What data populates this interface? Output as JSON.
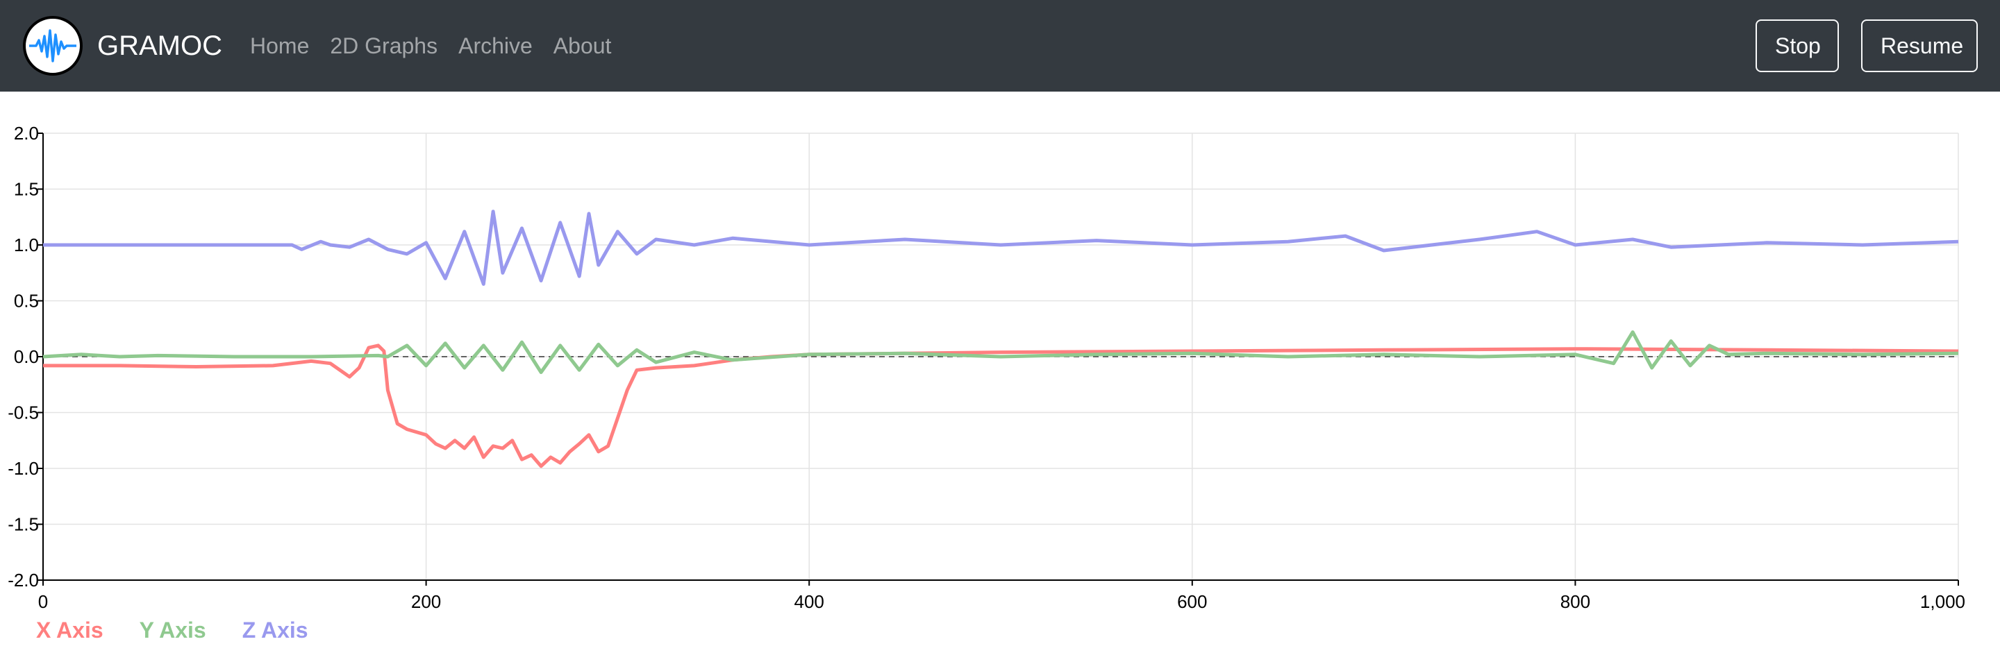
{
  "nav": {
    "brand": "GRAMOC",
    "links": [
      "Home",
      "2D Graphs",
      "Archive",
      "About"
    ],
    "stop_label": "Stop",
    "resume_label": "Resume",
    "logo_icon": "waveform-icon"
  },
  "chart_data": {
    "type": "line",
    "xlim": [
      0,
      1000
    ],
    "ylim": [
      -2.0,
      2.0
    ],
    "x_ticks": [
      0,
      200,
      400,
      600,
      800,
      1000
    ],
    "x_tick_labels": [
      "0",
      "200",
      "400",
      "600",
      "800",
      "1,000"
    ],
    "y_ticks": [
      2.0,
      1.5,
      1.0,
      0.5,
      0.0,
      -0.5,
      -1.0,
      -1.5,
      -2.0
    ],
    "y_tick_labels": [
      "2.0",
      "1.5",
      "1.0",
      "0.5",
      "0.0",
      "-0.5",
      "-1.0",
      "-1.5",
      "-2.0"
    ],
    "grid": true,
    "legend_position": "bottom-left",
    "series": [
      {
        "name": "X Axis",
        "color": "#ff7f7f",
        "points": [
          [
            0,
            -0.08
          ],
          [
            40,
            -0.08
          ],
          [
            80,
            -0.09
          ],
          [
            120,
            -0.08
          ],
          [
            140,
            -0.04
          ],
          [
            150,
            -0.06
          ],
          [
            155,
            -0.12
          ],
          [
            160,
            -0.18
          ],
          [
            165,
            -0.1
          ],
          [
            170,
            0.08
          ],
          [
            175,
            0.1
          ],
          [
            178,
            0.05
          ],
          [
            180,
            -0.3
          ],
          [
            185,
            -0.6
          ],
          [
            190,
            -0.65
          ],
          [
            200,
            -0.7
          ],
          [
            205,
            -0.78
          ],
          [
            210,
            -0.82
          ],
          [
            215,
            -0.75
          ],
          [
            220,
            -0.82
          ],
          [
            225,
            -0.72
          ],
          [
            230,
            -0.9
          ],
          [
            235,
            -0.8
          ],
          [
            240,
            -0.82
          ],
          [
            245,
            -0.75
          ],
          [
            250,
            -0.92
          ],
          [
            255,
            -0.88
          ],
          [
            260,
            -0.98
          ],
          [
            265,
            -0.9
          ],
          [
            270,
            -0.95
          ],
          [
            275,
            -0.85
          ],
          [
            280,
            -0.78
          ],
          [
            285,
            -0.7
          ],
          [
            290,
            -0.85
          ],
          [
            295,
            -0.8
          ],
          [
            300,
            -0.55
          ],
          [
            305,
            -0.3
          ],
          [
            310,
            -0.12
          ],
          [
            320,
            -0.1
          ],
          [
            340,
            -0.08
          ],
          [
            360,
            -0.03
          ],
          [
            380,
            0.0
          ],
          [
            400,
            0.02
          ],
          [
            500,
            0.04
          ],
          [
            600,
            0.05
          ],
          [
            700,
            0.06
          ],
          [
            800,
            0.07
          ],
          [
            900,
            0.06
          ],
          [
            1000,
            0.05
          ]
        ]
      },
      {
        "name": "Y Axis",
        "color": "#8fc98f",
        "points": [
          [
            0,
            0.0
          ],
          [
            20,
            0.02
          ],
          [
            40,
            0.0
          ],
          [
            60,
            0.01
          ],
          [
            100,
            0.0
          ],
          [
            140,
            0.0
          ],
          [
            175,
            0.01
          ],
          [
            180,
            0.0
          ],
          [
            190,
            0.1
          ],
          [
            200,
            -0.08
          ],
          [
            210,
            0.12
          ],
          [
            220,
            -0.1
          ],
          [
            230,
            0.1
          ],
          [
            240,
            -0.12
          ],
          [
            250,
            0.13
          ],
          [
            260,
            -0.14
          ],
          [
            270,
            0.1
          ],
          [
            280,
            -0.12
          ],
          [
            290,
            0.11
          ],
          [
            300,
            -0.08
          ],
          [
            310,
            0.06
          ],
          [
            320,
            -0.05
          ],
          [
            340,
            0.04
          ],
          [
            360,
            -0.03
          ],
          [
            400,
            0.02
          ],
          [
            450,
            0.03
          ],
          [
            500,
            0.0
          ],
          [
            550,
            0.02
          ],
          [
            600,
            0.03
          ],
          [
            650,
            0.0
          ],
          [
            700,
            0.02
          ],
          [
            750,
            0.0
          ],
          [
            800,
            0.02
          ],
          [
            820,
            -0.06
          ],
          [
            830,
            0.22
          ],
          [
            840,
            -0.1
          ],
          [
            850,
            0.14
          ],
          [
            860,
            -0.08
          ],
          [
            870,
            0.1
          ],
          [
            880,
            0.02
          ],
          [
            900,
            0.03
          ],
          [
            950,
            0.02
          ],
          [
            1000,
            0.03
          ]
        ]
      },
      {
        "name": "Z Axis",
        "color": "#9999ee",
        "points": [
          [
            0,
            1.0
          ],
          [
            50,
            1.0
          ],
          [
            100,
            1.0
          ],
          [
            130,
            1.0
          ],
          [
            135,
            0.96
          ],
          [
            145,
            1.03
          ],
          [
            150,
            1.0
          ],
          [
            160,
            0.98
          ],
          [
            170,
            1.05
          ],
          [
            180,
            0.96
          ],
          [
            190,
            0.92
          ],
          [
            200,
            1.02
          ],
          [
            210,
            0.7
          ],
          [
            220,
            1.12
          ],
          [
            230,
            0.65
          ],
          [
            235,
            1.3
          ],
          [
            240,
            0.75
          ],
          [
            250,
            1.15
          ],
          [
            260,
            0.68
          ],
          [
            270,
            1.2
          ],
          [
            280,
            0.72
          ],
          [
            285,
            1.28
          ],
          [
            290,
            0.82
          ],
          [
            300,
            1.12
          ],
          [
            310,
            0.92
          ],
          [
            320,
            1.05
          ],
          [
            340,
            1.0
          ],
          [
            360,
            1.06
          ],
          [
            400,
            1.0
          ],
          [
            450,
            1.05
          ],
          [
            500,
            1.0
          ],
          [
            550,
            1.04
          ],
          [
            600,
            1.0
          ],
          [
            650,
            1.03
          ],
          [
            680,
            1.08
          ],
          [
            700,
            0.95
          ],
          [
            750,
            1.05
          ],
          [
            780,
            1.12
          ],
          [
            800,
            1.0
          ],
          [
            830,
            1.05
          ],
          [
            850,
            0.98
          ],
          [
            900,
            1.02
          ],
          [
            950,
            1.0
          ],
          [
            1000,
            1.03
          ]
        ]
      }
    ]
  }
}
